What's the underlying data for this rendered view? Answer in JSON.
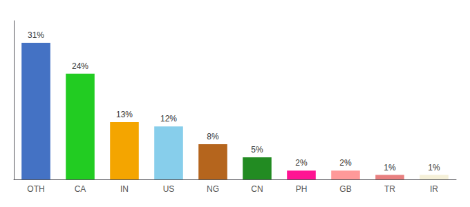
{
  "chart_data": {
    "type": "bar",
    "categories": [
      "OTH",
      "CA",
      "IN",
      "US",
      "NG",
      "CN",
      "PH",
      "GB",
      "TR",
      "IR"
    ],
    "values": [
      31,
      24,
      13,
      12,
      8,
      5,
      2,
      2,
      1,
      1
    ],
    "value_labels": [
      "31%",
      "24%",
      "13%",
      "12%",
      "8%",
      "5%",
      "2%",
      "2%",
      "1%",
      "1%"
    ],
    "colors": [
      "#4472c4",
      "#22cc22",
      "#f4a500",
      "#87ceeb",
      "#b5651d",
      "#228b22",
      "#ff1493",
      "#ff9999",
      "#e88080",
      "#f5f0d8"
    ],
    "ylim": [
      0,
      36
    ],
    "data_labels": true,
    "tick_labels": "x",
    "grid": false
  }
}
